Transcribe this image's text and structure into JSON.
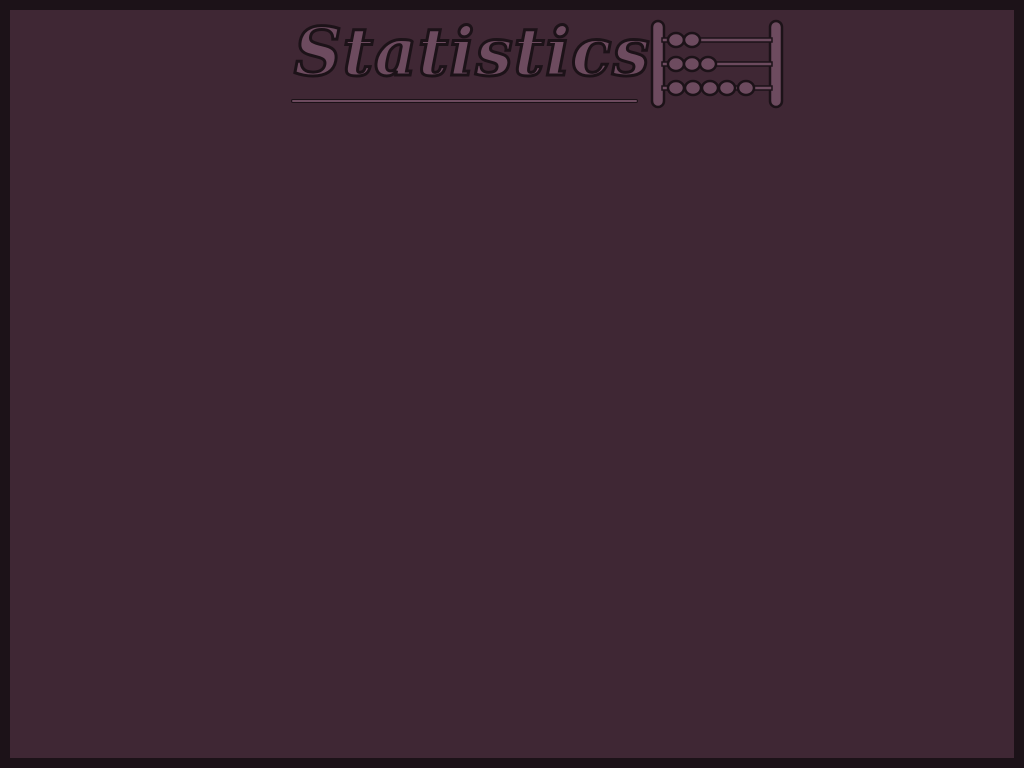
{
  "screen": {
    "title": "Statistics",
    "icon": "abacus-icon"
  },
  "colors": {
    "background": "#3f2734",
    "border": "#1c1218",
    "title_fill": "#6d4b5f"
  }
}
